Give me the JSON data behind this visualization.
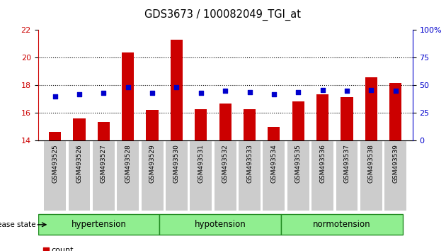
{
  "title": "GDS3673 / 100082049_TGI_at",
  "samples": [
    "GSM493525",
    "GSM493526",
    "GSM493527",
    "GSM493528",
    "GSM493529",
    "GSM493530",
    "GSM493531",
    "GSM493532",
    "GSM493533",
    "GSM493534",
    "GSM493535",
    "GSM493536",
    "GSM493537",
    "GSM493538",
    "GSM493539"
  ],
  "count_values": [
    14.65,
    15.6,
    15.35,
    20.4,
    16.2,
    21.3,
    16.25,
    16.7,
    16.25,
    14.97,
    16.85,
    17.35,
    17.15,
    18.6,
    18.15
  ],
  "percentile_values": [
    40,
    42,
    43,
    48,
    43,
    48,
    43,
    45,
    44,
    42,
    44,
    46,
    45,
    46,
    45
  ],
  "baseline": 14,
  "ylim_left": [
    14,
    22
  ],
  "ylim_right": [
    0,
    100
  ],
  "yticks_left": [
    14,
    16,
    18,
    20,
    22
  ],
  "yticks_right": [
    0,
    25,
    50,
    75,
    100
  ],
  "bar_color": "#CC0000",
  "dot_color": "#0000CC",
  "background_color": "#ffffff",
  "left_axis_color": "#CC0000",
  "right_axis_color": "#0000CC",
  "tick_bg_color": "#cccccc",
  "group_labels": [
    "hypertension",
    "hypotension",
    "normotension"
  ],
  "group_starts": [
    0,
    5,
    10
  ],
  "group_ends": [
    5,
    10,
    15
  ],
  "group_color": "#90EE90",
  "group_border_color": "#228B22"
}
